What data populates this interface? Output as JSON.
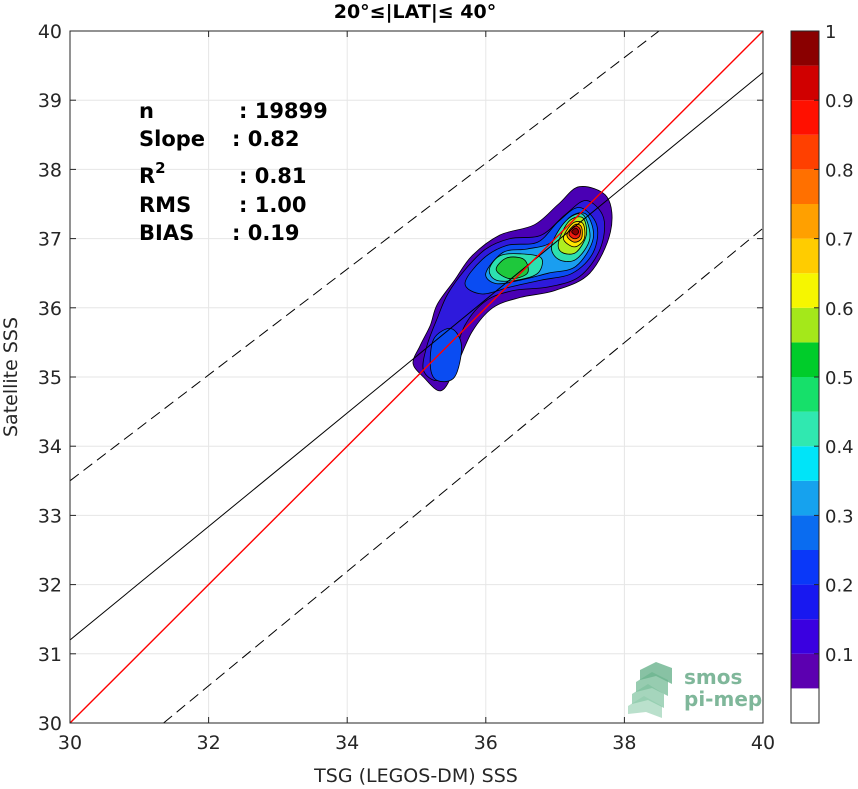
{
  "chart_data": {
    "type": "heatmap",
    "subtype": "density-scatter-contour",
    "title": "20°≤|LAT|≤ 40°",
    "xlabel": "TSG (LEGOS-DM) SSS",
    "ylabel": "Satellite SSS",
    "xlim": [
      30,
      40
    ],
    "ylim": [
      30,
      40
    ],
    "x_ticks": [
      30,
      32,
      34,
      36,
      38,
      40
    ],
    "y_ticks": [
      30,
      31,
      32,
      33,
      34,
      35,
      36,
      37,
      38,
      39,
      40
    ],
    "grid": true,
    "stats": [
      {
        "key": "n",
        "value": ": 19899"
      },
      {
        "key": "Slope",
        "value": ": 0.82"
      },
      {
        "key": "R",
        "sup": "2",
        "value": ": 0.81"
      },
      {
        "key": "RMS",
        "value": ": 1.00"
      },
      {
        "key": "BIAS",
        "value": ": 0.19"
      }
    ],
    "lines": {
      "one_to_one": {
        "slope": 1.0,
        "intercept": 0.0,
        "color": "#ff0000"
      },
      "fit": {
        "x": [
          30,
          40
        ],
        "y": [
          31.2,
          39.4
        ],
        "color": "#000000"
      },
      "rms_bounds": [
        {
          "x": [
            30,
            38.5
          ],
          "y": [
            33.5,
            40.0
          ]
        },
        {
          "x": [
            31.35,
            40
          ],
          "y": [
            30.0,
            37.15
          ]
        }
      ]
    },
    "density_contours": [
      {
        "level": 0.05,
        "color": "#4a00b4",
        "points": [
          [
            35.05,
            35.45
          ],
          [
            35.2,
            35.75
          ],
          [
            35.3,
            36.05
          ],
          [
            35.55,
            36.4
          ],
          [
            35.8,
            36.75
          ],
          [
            36.2,
            37.05
          ],
          [
            36.7,
            37.2
          ],
          [
            37.05,
            37.5
          ],
          [
            37.35,
            37.75
          ],
          [
            37.75,
            37.6
          ],
          [
            37.8,
            37.1
          ],
          [
            37.5,
            36.5
          ],
          [
            37.0,
            36.25
          ],
          [
            36.5,
            36.15
          ],
          [
            36.1,
            36.0
          ],
          [
            35.8,
            35.65
          ],
          [
            35.55,
            35.1
          ],
          [
            35.35,
            34.8
          ],
          [
            35.1,
            35.0
          ],
          [
            34.95,
            35.2
          ]
        ]
      },
      {
        "level": 0.1,
        "color": "#2e1adc",
        "points": [
          [
            35.15,
            35.45
          ],
          [
            35.3,
            35.85
          ],
          [
            35.45,
            36.2
          ],
          [
            35.7,
            36.55
          ],
          [
            36.0,
            36.85
          ],
          [
            36.35,
            37.0
          ],
          [
            36.8,
            37.05
          ],
          [
            37.15,
            37.35
          ],
          [
            37.45,
            37.55
          ],
          [
            37.7,
            37.3
          ],
          [
            37.65,
            36.85
          ],
          [
            37.35,
            36.45
          ],
          [
            36.9,
            36.3
          ],
          [
            36.4,
            36.25
          ],
          [
            36.0,
            36.1
          ],
          [
            35.7,
            35.75
          ],
          [
            35.5,
            35.2
          ],
          [
            35.3,
            34.95
          ],
          [
            35.1,
            35.1
          ]
        ]
      },
      {
        "level": 0.2,
        "color": "#0a4cf2",
        "points": [
          [
            35.2,
            35.15
          ],
          [
            35.25,
            35.55
          ],
          [
            35.5,
            35.7
          ],
          [
            35.65,
            35.45
          ],
          [
            35.55,
            35.0
          ],
          [
            35.3,
            34.95
          ]
        ]
      },
      {
        "level": 0.2,
        "color": "#0a4cf2",
        "points": [
          [
            35.7,
            36.35
          ],
          [
            35.95,
            36.7
          ],
          [
            36.3,
            36.9
          ],
          [
            36.75,
            36.95
          ],
          [
            37.05,
            37.25
          ],
          [
            37.35,
            37.45
          ],
          [
            37.6,
            37.2
          ],
          [
            37.55,
            36.8
          ],
          [
            37.25,
            36.5
          ],
          [
            36.8,
            36.4
          ],
          [
            36.35,
            36.3
          ],
          [
            35.95,
            36.2
          ]
        ]
      },
      {
        "level": 0.3,
        "color": "#1a9ef0",
        "points": [
          [
            36.0,
            36.5
          ],
          [
            36.25,
            36.8
          ],
          [
            36.6,
            36.85
          ],
          [
            36.95,
            36.95
          ],
          [
            37.2,
            37.3
          ],
          [
            37.45,
            37.35
          ],
          [
            37.55,
            37.0
          ],
          [
            37.3,
            36.6
          ],
          [
            36.9,
            36.5
          ],
          [
            36.5,
            36.4
          ],
          [
            36.15,
            36.35
          ]
        ]
      },
      {
        "level": 0.4,
        "color": "#2de0b0",
        "points": [
          [
            36.05,
            36.55
          ],
          [
            36.2,
            36.75
          ],
          [
            36.5,
            36.78
          ],
          [
            36.8,
            36.72
          ],
          [
            36.75,
            36.5
          ],
          [
            36.45,
            36.4
          ],
          [
            36.15,
            36.4
          ]
        ]
      },
      {
        "level": 0.4,
        "color": "#2de0b0",
        "points": [
          [
            36.95,
            36.9
          ],
          [
            37.15,
            37.25
          ],
          [
            37.4,
            37.35
          ],
          [
            37.5,
            37.0
          ],
          [
            37.3,
            36.7
          ],
          [
            37.05,
            36.7
          ]
        ]
      },
      {
        "level": 0.5,
        "color": "#1ec83c",
        "points": [
          [
            36.15,
            36.55
          ],
          [
            36.3,
            36.72
          ],
          [
            36.55,
            36.7
          ],
          [
            36.6,
            36.5
          ],
          [
            36.35,
            36.42
          ]
        ]
      },
      {
        "level": 0.6,
        "color": "#b0ee20",
        "points": [
          [
            37.05,
            36.95
          ],
          [
            37.2,
            37.25
          ],
          [
            37.4,
            37.3
          ],
          [
            37.45,
            37.05
          ],
          [
            37.3,
            36.8
          ],
          [
            37.1,
            36.8
          ]
        ]
      },
      {
        "level": 0.7,
        "color": "#ffe600",
        "points": [
          [
            37.12,
            37.0
          ],
          [
            37.25,
            37.22
          ],
          [
            37.4,
            37.22
          ],
          [
            37.42,
            37.0
          ],
          [
            37.28,
            36.88
          ]
        ]
      },
      {
        "level": 0.8,
        "color": "#ff8a00",
        "points": [
          [
            37.17,
            37.05
          ],
          [
            37.28,
            37.2
          ],
          [
            37.38,
            37.17
          ],
          [
            37.38,
            37.0
          ],
          [
            37.27,
            36.95
          ]
        ]
      },
      {
        "level": 0.9,
        "color": "#ee1a10",
        "points": [
          [
            37.2,
            37.07
          ],
          [
            37.28,
            37.18
          ],
          [
            37.36,
            37.14
          ],
          [
            37.35,
            37.03
          ],
          [
            37.27,
            37.0
          ]
        ]
      },
      {
        "level": 1.0,
        "color": "#8a0000",
        "points": [
          [
            37.24,
            37.1
          ],
          [
            37.3,
            37.15
          ],
          [
            37.34,
            37.1
          ],
          [
            37.3,
            37.05
          ]
        ]
      }
    ],
    "colorbar": {
      "ticks": [
        "0.1",
        "0.2",
        "0.3",
        "0.4",
        "0.5",
        "0.6",
        "0.7",
        "0.8",
        "0.9",
        "1"
      ],
      "tick_values": [
        0.1,
        0.2,
        0.3,
        0.4,
        0.5,
        0.6,
        0.7,
        0.8,
        0.9,
        1.0
      ],
      "range": [
        0,
        1
      ],
      "bins": [
        {
          "from": 0.0,
          "to": 0.05,
          "color": "#ffffff"
        },
        {
          "from": 0.05,
          "to": 0.1,
          "color": "#5c00b0"
        },
        {
          "from": 0.1,
          "to": 0.15,
          "color": "#3a00e0"
        },
        {
          "from": 0.15,
          "to": 0.2,
          "color": "#1818f0"
        },
        {
          "from": 0.2,
          "to": 0.25,
          "color": "#0a38f8"
        },
        {
          "from": 0.25,
          "to": 0.3,
          "color": "#0a6cf0"
        },
        {
          "from": 0.3,
          "to": 0.35,
          "color": "#16a2ee"
        },
        {
          "from": 0.35,
          "to": 0.4,
          "color": "#00e4f8"
        },
        {
          "from": 0.4,
          "to": 0.45,
          "color": "#30e8b0"
        },
        {
          "from": 0.45,
          "to": 0.5,
          "color": "#16e06a"
        },
        {
          "from": 0.5,
          "to": 0.55,
          "color": "#00cc2a"
        },
        {
          "from": 0.55,
          "to": 0.6,
          "color": "#a4e81a"
        },
        {
          "from": 0.6,
          "to": 0.65,
          "color": "#f6f600"
        },
        {
          "from": 0.65,
          "to": 0.7,
          "color": "#ffcc00"
        },
        {
          "from": 0.7,
          "to": 0.75,
          "color": "#ffa000"
        },
        {
          "from": 0.75,
          "to": 0.8,
          "color": "#ff7000"
        },
        {
          "from": 0.8,
          "to": 0.85,
          "color": "#ff4000"
        },
        {
          "from": 0.85,
          "to": 0.9,
          "color": "#ff1000"
        },
        {
          "from": 0.9,
          "to": 0.95,
          "color": "#d00000"
        },
        {
          "from": 0.95,
          "to": 1.0,
          "color": "#8a0000"
        }
      ]
    }
  },
  "watermark": {
    "line1": "smos",
    "line2": "pi-mep"
  }
}
